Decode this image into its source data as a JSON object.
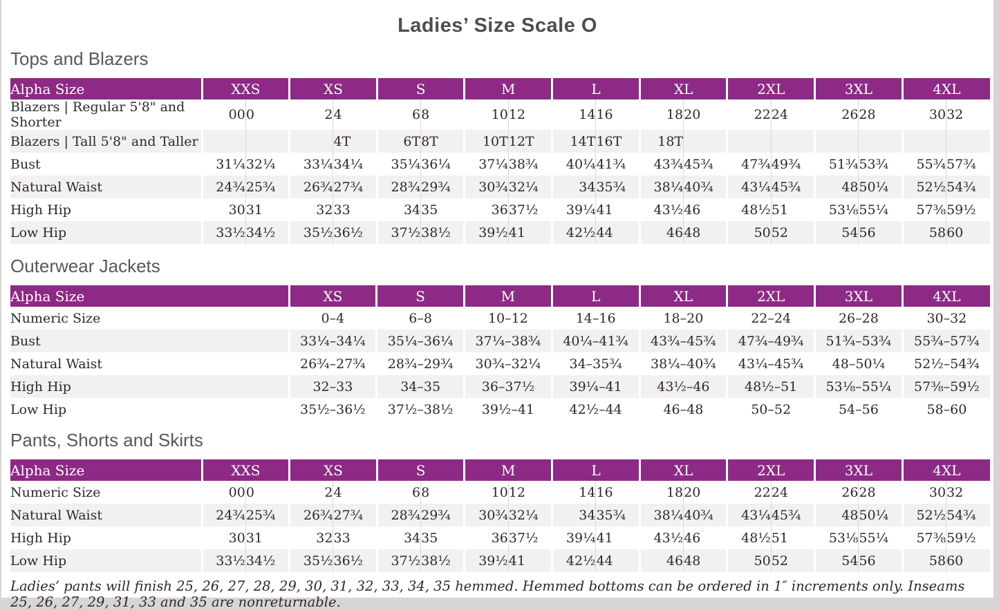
{
  "page_title": "Ladies’ Size Scale O",
  "colors": {
    "header_purple": "#8d2a85",
    "row_stripe": "#f2f1ef",
    "heading_gray": "#58585a",
    "text": "#2d282a",
    "page_edge": "#d8d6d4"
  },
  "sections": [
    {
      "heading": "Tops and Blazers",
      "type": "paired",
      "header": {
        "label": "Alpha Size",
        "sizes": [
          "XXS",
          "XS",
          "S",
          "M",
          "L",
          "XL",
          "2XL",
          "3XL",
          "4XL"
        ]
      },
      "rows": [
        {
          "label": "Blazers  |  Regular 5'8\" and Shorter",
          "values": [
            "00",
            "0",
            "2",
            "4",
            "6",
            "8",
            "10",
            "12",
            "14",
            "16",
            "18",
            "20",
            "22",
            "24",
            "26",
            "28",
            "30",
            "32"
          ]
        },
        {
          "label": "Blazers  |  Tall 5'8\" and Taller",
          "values": [
            "",
            "",
            "",
            "4T",
            "6T",
            "8T",
            "10T",
            "12T",
            "14T",
            "16T",
            "18T",
            "",
            "",
            "",
            "",
            "",
            "",
            ""
          ]
        },
        {
          "label": "Bust",
          "values": [
            "31¼",
            "32¼",
            "33¼",
            "34¼",
            "35¼",
            "36¼",
            "37¼",
            "38¾",
            "40¼",
            "41¾",
            "43¾",
            "45¾",
            "47¾",
            "49¾",
            "51¾",
            "53¾",
            "55¾",
            "57¾"
          ]
        },
        {
          "label": "Natural Waist",
          "values": [
            "24¾",
            "25¾",
            "26¾",
            "27¾",
            "28¾",
            "29¾",
            "30¾",
            "32¼",
            "34",
            "35¾",
            "38¼",
            "40¾",
            "43¼",
            "45¾",
            "48",
            "50¼",
            "52½",
            "54¾"
          ]
        },
        {
          "label": "High Hip",
          "values": [
            "30",
            "31",
            "32",
            "33",
            "34",
            "35",
            "36",
            "37½",
            "39¼",
            "41",
            "43½",
            "46",
            "48½",
            "51",
            "53⅛",
            "55¼",
            "57⅜",
            "59½"
          ]
        },
        {
          "label": "Low Hip",
          "values": [
            "33½",
            "34½",
            "35½",
            "36½",
            "37½",
            "38½",
            "39½",
            "41",
            "42½",
            "44",
            "46",
            "48",
            "50",
            "52",
            "54",
            "56",
            "58",
            "60"
          ]
        }
      ]
    },
    {
      "heading": "Outerwear Jackets",
      "type": "range",
      "header": {
        "label": "Alpha Size",
        "sizes": [
          "XS",
          "S",
          "M",
          "L",
          "XL",
          "2XL",
          "3XL",
          "4XL"
        ]
      },
      "rows": [
        {
          "label": "Numeric Size",
          "values": [
            "0–4",
            "6–8",
            "10–12",
            "14–16",
            "18–20",
            "22–24",
            "26–28",
            "30–32"
          ]
        },
        {
          "label": "Bust",
          "values": [
            "33¼–34¼",
            "35¼–36¼",
            "37¼–38¾",
            "40¼–41¾",
            "43¾–45¾",
            "47¾–49¾",
            "51¾–53¾",
            "55¾–57¾"
          ]
        },
        {
          "label": "Natural Waist",
          "values": [
            "26¾–27¾",
            "28¾–29¾",
            "30¾–32¼",
            "34–35¾",
            "38¼–40¾",
            "43¼–45¾",
            "48–50¼",
            "52½–54¾"
          ]
        },
        {
          "label": "High Hip",
          "values": [
            "32–33",
            "34–35",
            "36–37½",
            "39¼–41",
            "43½–46",
            "48½–51",
            "53⅛–55¼",
            "57⅜–59½"
          ]
        },
        {
          "label": "Low Hip",
          "values": [
            "35½–36½",
            "37½–38½",
            "39½–41",
            "42½–44",
            "46–48",
            "50–52",
            "54–56",
            "58–60"
          ]
        }
      ]
    },
    {
      "heading": "Pants, Shorts and Skirts",
      "type": "paired",
      "header": {
        "label": "Alpha Size",
        "sizes": [
          "XXS",
          "XS",
          "S",
          "M",
          "L",
          "XL",
          "2XL",
          "3XL",
          "4XL"
        ]
      },
      "rows": [
        {
          "label": "Numeric Size",
          "values": [
            "00",
            "0",
            "2",
            "4",
            "6",
            "8",
            "10",
            "12",
            "14",
            "16",
            "18",
            "20",
            "22",
            "24",
            "26",
            "28",
            "30",
            "32"
          ]
        },
        {
          "label": "Natural Waist",
          "values": [
            "24¾",
            "25¾",
            "26¾",
            "27¾",
            "28¾",
            "29¾",
            "30¾",
            "32¼",
            "34",
            "35¾",
            "38¼",
            "40¾",
            "43¼",
            "45¾",
            "48",
            "50¼",
            "52½",
            "54¾"
          ]
        },
        {
          "label": "High Hip",
          "values": [
            "30",
            "31",
            "32",
            "33",
            "34",
            "35",
            "36",
            "37½",
            "39¼",
            "41",
            "43½",
            "46",
            "48½",
            "51",
            "53⅛",
            "55¼",
            "57⅜",
            "59½"
          ]
        },
        {
          "label": "Low Hip",
          "values": [
            "33½",
            "34½",
            "35½",
            "36½",
            "37½",
            "38½",
            "39½",
            "41",
            "42½",
            "44",
            "46",
            "48",
            "50",
            "52",
            "54",
            "56",
            "58",
            "60"
          ]
        }
      ]
    }
  ],
  "footnote": "Ladies’ pants will finish 25, 26, 27, 28, 29, 30, 31, 32, 33, 34, 35 hemmed. Hemmed bottoms can be ordered in 1″ increments only. Inseams 25, 26, 27, 29, 31, 33 and 35 are nonreturnable."
}
